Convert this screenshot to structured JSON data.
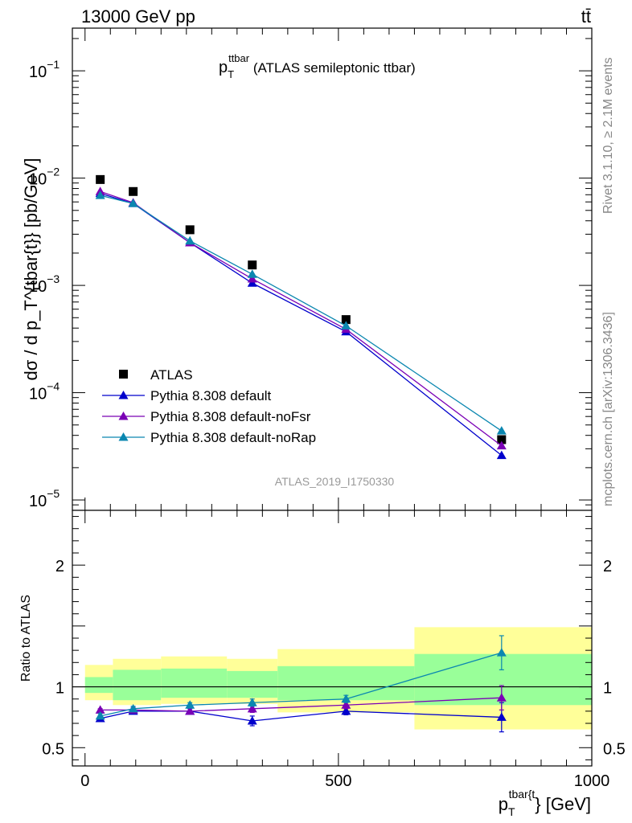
{
  "header": {
    "left_label": "13000 GeV pp",
    "right_label": "tt̄"
  },
  "side_labels": {
    "rivet": "Rivet 3.1.10, ≥ 2.1M events",
    "mcplots": "mcplots.cern.ch [arXiv:1306.3436]"
  },
  "chart_data": [
    {
      "type": "scatter",
      "title_main": "p",
      "title_sub": "T",
      "title_sup": "ttbar",
      "title_rest": " (ATLAS semileptonic ttbar)",
      "watermark": "ATLAS_2019_I1750330",
      "ylabel": "dσ / d p_T^{tbar{t}} [pb/GeV]",
      "yscale": "log",
      "ylim": [
        8e-06,
        0.25
      ],
      "xlim": [
        -25,
        1000
      ],
      "y_ticks": [
        {
          "value": 0.1,
          "base": "10",
          "exp": "−1"
        },
        {
          "value": 0.01,
          "base": "10",
          "exp": "−2"
        },
        {
          "value": 0.001,
          "base": "10",
          "exp": "−3"
        },
        {
          "value": 0.0001,
          "base": "10",
          "exp": "−4"
        },
        {
          "value": 1e-05,
          "base": "10",
          "exp": "−5"
        }
      ],
      "legend_position": "lower-left",
      "x": [
        30,
        95,
        207,
        330,
        515,
        822
      ],
      "series": [
        {
          "name": "ATLAS",
          "color": "#000000",
          "marker": "square",
          "line": false,
          "values": [
            0.0097,
            0.0075,
            0.0033,
            0.00155,
            0.00048,
            3.65e-05
          ]
        },
        {
          "name": "Pythia 8.308 default",
          "color": "#0000cc",
          "marker": "triangle",
          "line": true,
          "values": [
            0.0072,
            0.0058,
            0.0025,
            0.00105,
            0.00037,
            2.6e-05
          ]
        },
        {
          "name": "Pythia 8.308 default-noFsr",
          "color": "#7a00b5",
          "marker": "triangle",
          "line": true,
          "values": [
            0.0075,
            0.0059,
            0.0025,
            0.00115,
            0.00039,
            3.2e-05
          ]
        },
        {
          "name": "Pythia 8.308 default-noRap",
          "color": "#0b87b0",
          "marker": "triangle",
          "line": true,
          "values": [
            0.0069,
            0.0058,
            0.0026,
            0.00127,
            0.00042,
            4.4e-05
          ]
        }
      ]
    },
    {
      "type": "line",
      "ylabel": "Ratio to ATLAS",
      "ylim": [
        0.35,
        2.45
      ],
      "xlim": [
        -25,
        1000
      ],
      "y_ticks": [
        {
          "value": 0.5,
          "label": "0.5"
        },
        {
          "value": 1,
          "label": "1"
        },
        {
          "value": 2,
          "label": "2"
        }
      ],
      "x_ticks": [
        {
          "value": 0,
          "label": "0"
        },
        {
          "value": 500,
          "label": "500"
        },
        {
          "value": 1000,
          "label": "1000"
        }
      ],
      "xlabel_main": "p",
      "xlabel_sub": "T",
      "xlabel_sup": "tbar{t",
      "xlabel_rest": "} [GeV]",
      "bands": {
        "edges": [
          0,
          55,
          150,
          280,
          380,
          650,
          1000
        ],
        "yellow": [
          [
            0.89,
            1.18
          ],
          [
            0.85,
            1.23
          ],
          [
            0.86,
            1.25
          ],
          [
            0.86,
            1.23
          ],
          [
            0.79,
            1.31
          ],
          [
            0.65,
            1.49
          ]
        ],
        "green": [
          [
            0.95,
            1.08
          ],
          [
            0.89,
            1.14
          ],
          [
            0.91,
            1.15
          ],
          [
            0.91,
            1.13
          ],
          [
            0.89,
            1.17
          ],
          [
            0.85,
            1.27
          ]
        ]
      },
      "x": [
        30,
        95,
        207,
        330,
        515,
        822
      ],
      "series": [
        {
          "name": "Pythia 8.308 default",
          "color": "#0000cc",
          "values": [
            0.74,
            0.8,
            0.8,
            0.72,
            0.8,
            0.75
          ],
          "err": [
            0.02,
            0.02,
            0.02,
            0.04,
            0.03,
            0.12
          ]
        },
        {
          "name": "Pythia 8.308 default-noFsr",
          "color": "#7a00b5",
          "values": [
            0.81,
            0.81,
            0.8,
            0.82,
            0.85,
            0.91
          ],
          "err": [
            0.01,
            0.02,
            0.02,
            0.03,
            0.03,
            0.1
          ]
        },
        {
          "name": "Pythia 8.308 default-noRap",
          "color": "#0b87b0",
          "values": [
            0.76,
            0.82,
            0.85,
            0.87,
            0.9,
            1.28
          ],
          "err": [
            0.02,
            0.02,
            0.02,
            0.03,
            0.03,
            0.14
          ]
        }
      ]
    }
  ]
}
